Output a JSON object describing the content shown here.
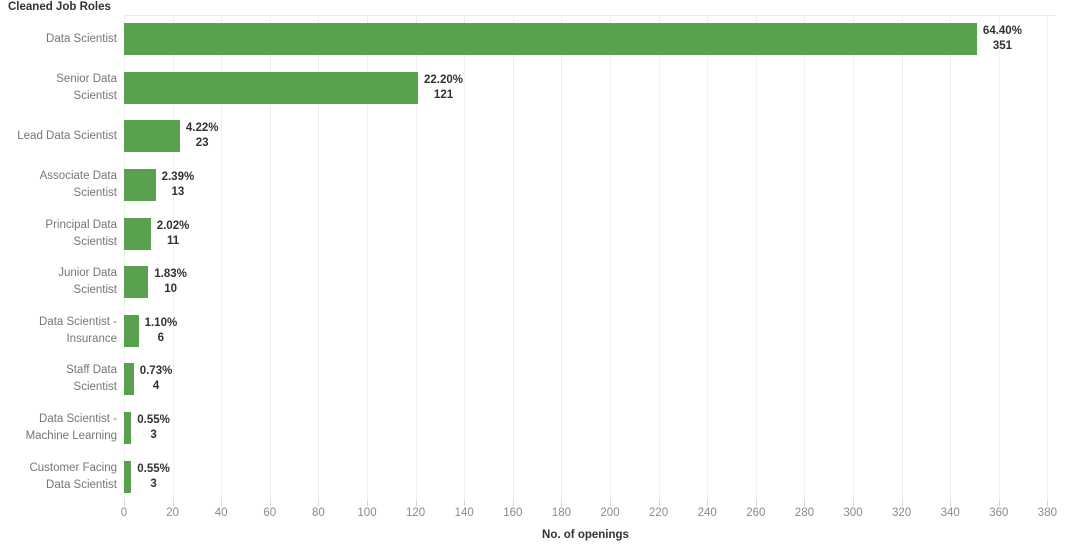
{
  "chart_data": {
    "type": "bar",
    "orientation": "horizontal",
    "title": "Cleaned Job Roles",
    "xlabel": "No. of openings",
    "ylabel": "Cleaned Job Roles",
    "xlim": [
      0,
      380
    ],
    "xticks": [
      0,
      20,
      40,
      60,
      80,
      100,
      120,
      140,
      160,
      180,
      200,
      220,
      240,
      260,
      280,
      300,
      320,
      340,
      360,
      380
    ],
    "grid": true,
    "legend": false,
    "bar_color": "#59a14f",
    "categories": [
      "Data Scientist",
      "Senior Data\nScientist",
      "Lead Data Scientist",
      "Associate Data\nScientist",
      "Principal Data\nScientist",
      "Junior Data\nScientist",
      "Data Scientist -\nInsurance",
      "Staff Data\nScientist",
      "Data Scientist -\nMachine Learning",
      "Customer Facing\nData Scientist"
    ],
    "values": [
      351,
      121,
      23,
      13,
      11,
      10,
      6,
      4,
      3,
      3
    ],
    "percent_labels": [
      "64.40%",
      "22.20%",
      "4.22%",
      "2.39%",
      "2.02%",
      "1.83%",
      "1.10%",
      "0.73%",
      "0.55%",
      "0.55%"
    ]
  },
  "colors": {
    "bar": "#59a14f",
    "row_label": "#767676",
    "value_label": "#323232",
    "tick_label": "#8a8a8a",
    "title": "#333333",
    "gridline": "#efefef"
  }
}
